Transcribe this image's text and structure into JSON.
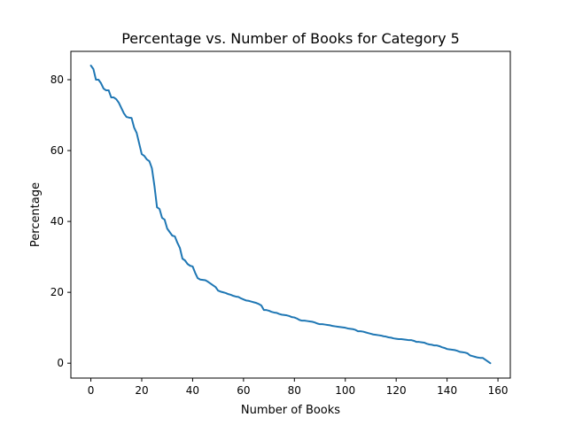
{
  "chart_data": {
    "type": "line",
    "title": "Percentage vs. Number of Books for Category 5",
    "xlabel": "Number of Books",
    "ylabel": "Percentage",
    "xlim": [
      -7.85,
      164.85
    ],
    "ylim": [
      -4.2,
      88.0
    ],
    "x_ticks": [
      0,
      20,
      40,
      60,
      80,
      100,
      120,
      140,
      160
    ],
    "y_ticks": [
      0,
      20,
      40,
      60,
      80
    ],
    "grid": false,
    "legend": "none",
    "series": [
      {
        "color": "#1f77b4",
        "points": [
          [
            0,
            84.0
          ],
          [
            1,
            83.0
          ],
          [
            2,
            80.0
          ],
          [
            3,
            80.0
          ],
          [
            4,
            79.0
          ],
          [
            5,
            77.5
          ],
          [
            6,
            77.0
          ],
          [
            7,
            77.0
          ],
          [
            8,
            75.0
          ],
          [
            9,
            75.0
          ],
          [
            10,
            74.5
          ],
          [
            11,
            73.5
          ],
          [
            12,
            72.0
          ],
          [
            13,
            70.5
          ],
          [
            14,
            69.5
          ],
          [
            15,
            69.3
          ],
          [
            16,
            69.2
          ],
          [
            17,
            66.5
          ],
          [
            18,
            65.0
          ],
          [
            19,
            62.0
          ],
          [
            20,
            59.0
          ],
          [
            21,
            58.5
          ],
          [
            22,
            57.5
          ],
          [
            23,
            57.0
          ],
          [
            24,
            55.0
          ],
          [
            25,
            50.0
          ],
          [
            26,
            44.0
          ],
          [
            27,
            43.5
          ],
          [
            28,
            41.0
          ],
          [
            29,
            40.5
          ],
          [
            30,
            38.0
          ],
          [
            31,
            37.0
          ],
          [
            32,
            36.0
          ],
          [
            33,
            35.8
          ],
          [
            34,
            34.0
          ],
          [
            35,
            32.5
          ],
          [
            36,
            29.5
          ],
          [
            37,
            29.0
          ],
          [
            38,
            28.0
          ],
          [
            39,
            27.5
          ],
          [
            40,
            27.3
          ],
          [
            41,
            25.5
          ],
          [
            42,
            24.0
          ],
          [
            43,
            23.6
          ],
          [
            44,
            23.5
          ],
          [
            45,
            23.4
          ],
          [
            46,
            23.0
          ],
          [
            47,
            22.5
          ],
          [
            48,
            22.0
          ],
          [
            49,
            21.5
          ],
          [
            50,
            20.5
          ],
          [
            51,
            20.2
          ],
          [
            52,
            20.0
          ],
          [
            53,
            19.8
          ],
          [
            54,
            19.5
          ],
          [
            55,
            19.3
          ],
          [
            56,
            19.0
          ],
          [
            57,
            18.8
          ],
          [
            58,
            18.7
          ],
          [
            59,
            18.3
          ],
          [
            60,
            18.0
          ],
          [
            61,
            17.7
          ],
          [
            62,
            17.6
          ],
          [
            63,
            17.4
          ],
          [
            64,
            17.2
          ],
          [
            65,
            17.0
          ],
          [
            66,
            16.7
          ],
          [
            67,
            16.3
          ],
          [
            68,
            15.0
          ],
          [
            69,
            15.0
          ],
          [
            70,
            14.8
          ],
          [
            71,
            14.5
          ],
          [
            72,
            14.3
          ],
          [
            73,
            14.2
          ],
          [
            74,
            13.9
          ],
          [
            75,
            13.7
          ],
          [
            76,
            13.6
          ],
          [
            77,
            13.5
          ],
          [
            78,
            13.3
          ],
          [
            79,
            13.0
          ],
          [
            80,
            12.9
          ],
          [
            81,
            12.6
          ],
          [
            82,
            12.2
          ],
          [
            83,
            12.0
          ],
          [
            84,
            12.0
          ],
          [
            85,
            11.9
          ],
          [
            86,
            11.8
          ],
          [
            87,
            11.7
          ],
          [
            88,
            11.5
          ],
          [
            89,
            11.2
          ],
          [
            90,
            11.0
          ],
          [
            91,
            11.0
          ],
          [
            92,
            10.9
          ],
          [
            93,
            10.8
          ],
          [
            94,
            10.7
          ],
          [
            95,
            10.5
          ],
          [
            96,
            10.4
          ],
          [
            97,
            10.3
          ],
          [
            98,
            10.2
          ],
          [
            99,
            10.1
          ],
          [
            100,
            10.0
          ],
          [
            101,
            9.8
          ],
          [
            102,
            9.7
          ],
          [
            103,
            9.6
          ],
          [
            104,
            9.4
          ],
          [
            105,
            9.0
          ],
          [
            106,
            9.0
          ],
          [
            107,
            8.9
          ],
          [
            108,
            8.7
          ],
          [
            109,
            8.5
          ],
          [
            110,
            8.3
          ],
          [
            111,
            8.1
          ],
          [
            112,
            8.0
          ],
          [
            113,
            7.9
          ],
          [
            114,
            7.8
          ],
          [
            115,
            7.6
          ],
          [
            116,
            7.5
          ],
          [
            117,
            7.3
          ],
          [
            118,
            7.2
          ],
          [
            119,
            7.0
          ],
          [
            120,
            6.9
          ],
          [
            121,
            6.8
          ],
          [
            122,
            6.8
          ],
          [
            123,
            6.7
          ],
          [
            124,
            6.6
          ],
          [
            125,
            6.5
          ],
          [
            126,
            6.5
          ],
          [
            127,
            6.3
          ],
          [
            128,
            6.0
          ],
          [
            129,
            6.0
          ],
          [
            130,
            5.9
          ],
          [
            131,
            5.8
          ],
          [
            132,
            5.5
          ],
          [
            133,
            5.3
          ],
          [
            134,
            5.2
          ],
          [
            135,
            5.0
          ],
          [
            136,
            5.0
          ],
          [
            137,
            4.8
          ],
          [
            138,
            4.5
          ],
          [
            139,
            4.3
          ],
          [
            140,
            4.0
          ],
          [
            141,
            3.9
          ],
          [
            142,
            3.8
          ],
          [
            143,
            3.7
          ],
          [
            144,
            3.5
          ],
          [
            145,
            3.2
          ],
          [
            146,
            3.1
          ],
          [
            147,
            3.0
          ],
          [
            148,
            2.8
          ],
          [
            149,
            2.2
          ],
          [
            150,
            2.0
          ],
          [
            151,
            1.8
          ],
          [
            152,
            1.6
          ],
          [
            153,
            1.5
          ],
          [
            154,
            1.5
          ],
          [
            155,
            1.0
          ],
          [
            156,
            0.5
          ],
          [
            157,
            0.0
          ]
        ]
      }
    ]
  }
}
